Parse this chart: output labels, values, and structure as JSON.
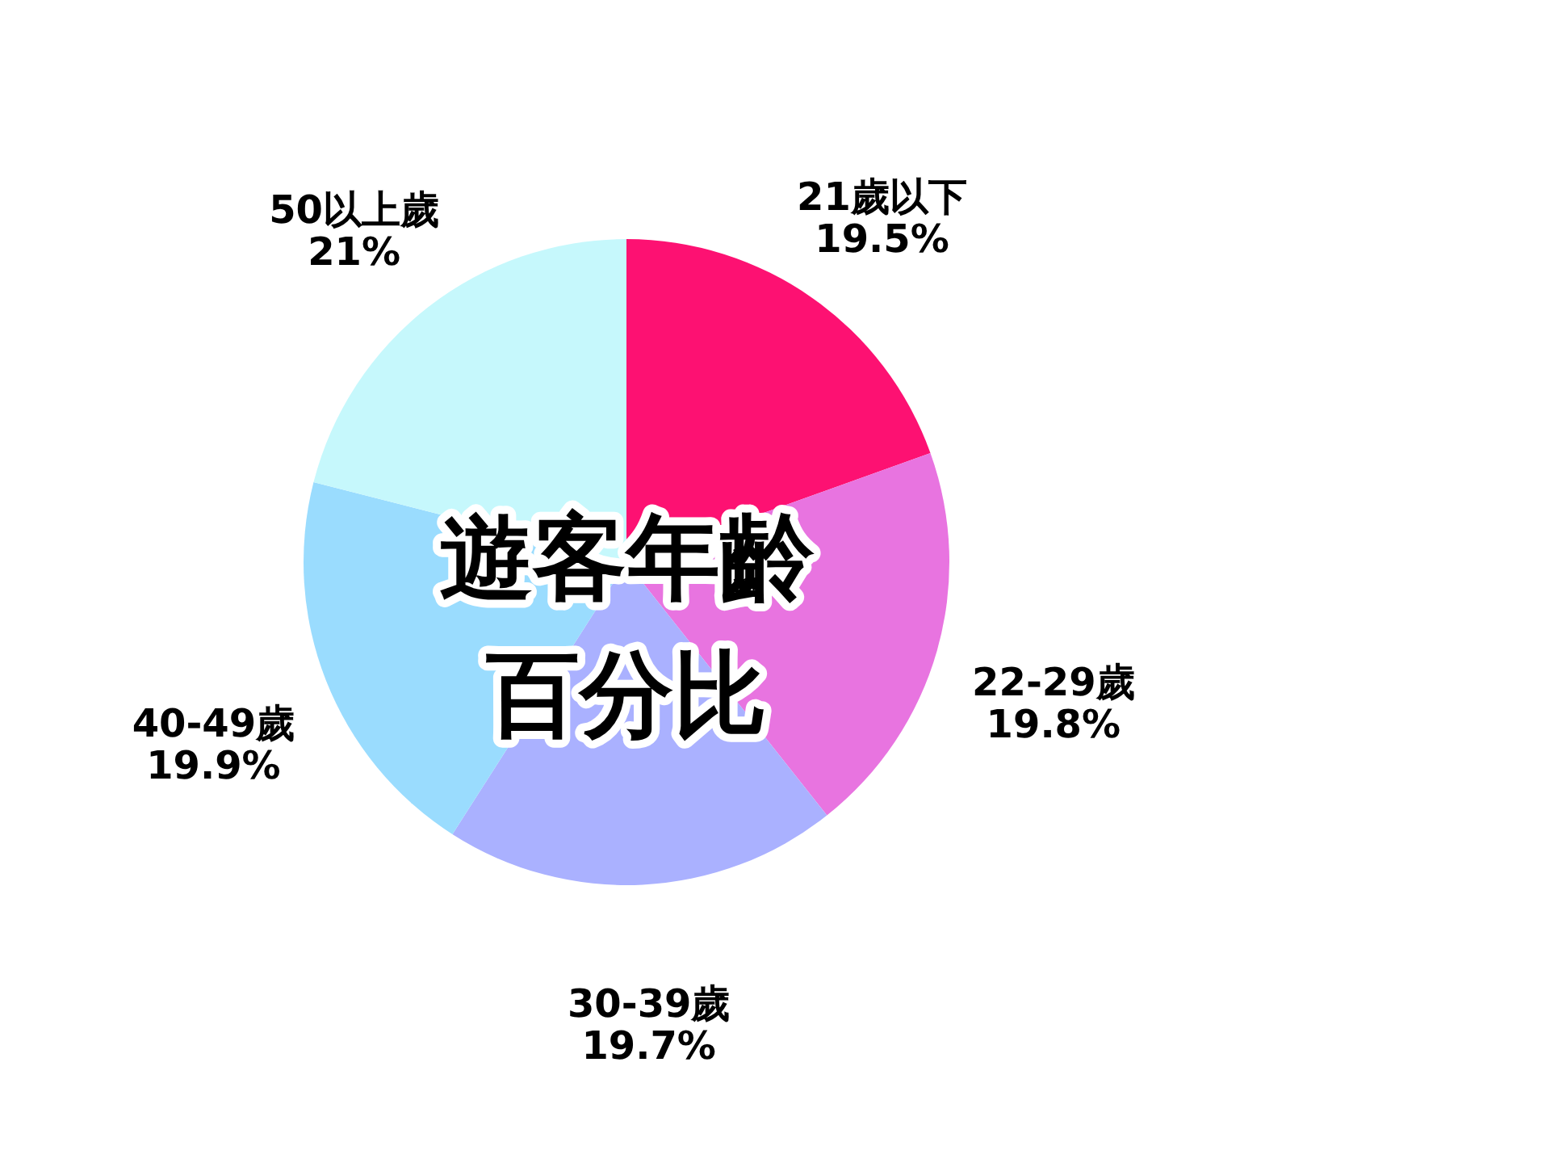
{
  "chart_data": {
    "type": "pie",
    "title": "遊客年齡百分比",
    "categories": [
      "21歲以下",
      "22-29歲",
      "30-39歲",
      "40-49歲",
      "50以上歲"
    ],
    "values": [
      19.5,
      19.8,
      19.7,
      19.9,
      21
    ],
    "value_labels": [
      "19.5%",
      "19.8%",
      "19.7%",
      "19.9%",
      "21%"
    ],
    "colors": [
      "#fd1172",
      "#e874e0",
      "#aab1ff",
      "#9adcfe",
      "#c6f8fc"
    ]
  }
}
